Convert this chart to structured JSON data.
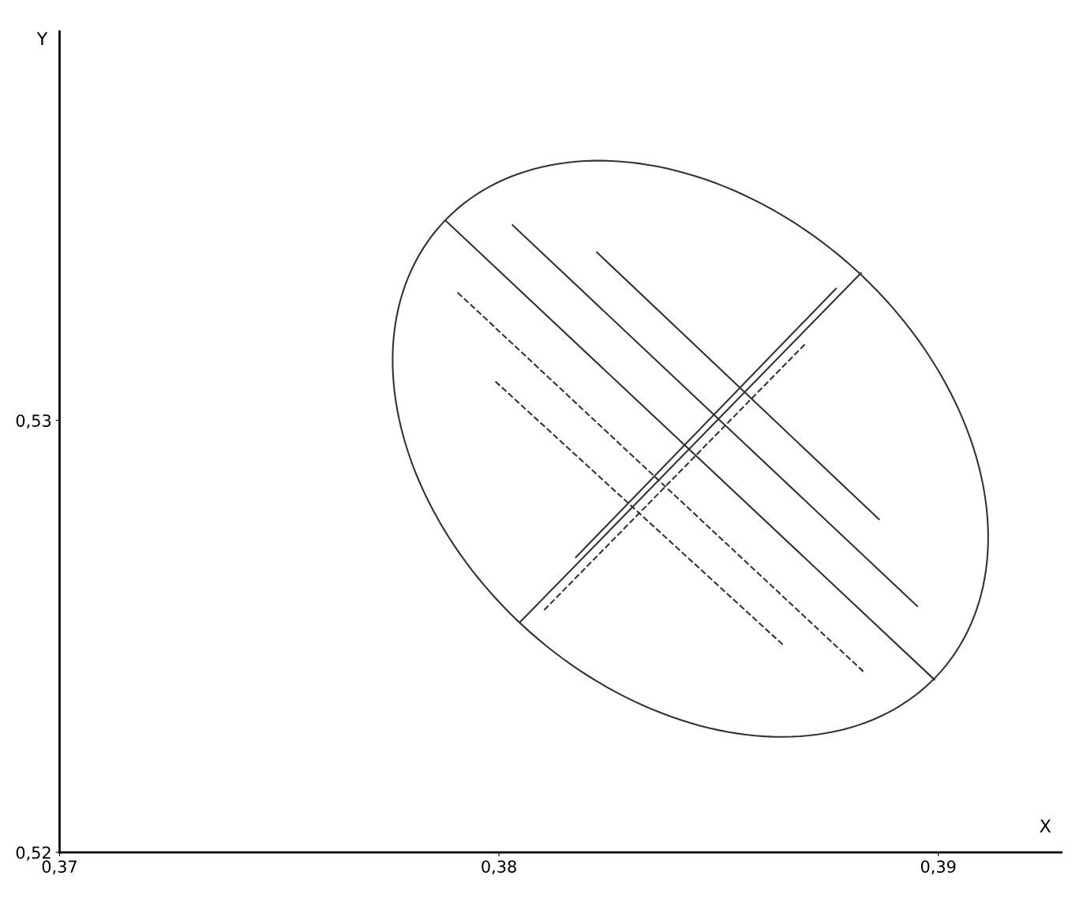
{
  "chart_data": {
    "type": "line",
    "xlabel": "X",
    "ylabel": "Y",
    "xlim": [
      0.37,
      0.3928
    ],
    "ylim": [
      0.52,
      0.539
    ],
    "xticks": [
      {
        "value": 0.37,
        "label": "0,37"
      },
      {
        "value": 0.38,
        "label": "0,38"
      },
      {
        "value": 0.39,
        "label": "0,39"
      }
    ],
    "yticks": [
      {
        "value": 0.52,
        "label": "0,52"
      },
      {
        "value": 0.53,
        "label": "0,53"
      }
    ],
    "grid": false,
    "marker": "none",
    "series": [
      {
        "color": "#333333",
        "line_style": "solid",
        "x": [
          0.37879,
          0.38991
        ],
        "values": [
          0.53462,
          0.524
        ]
      },
      {
        "color": "#333333",
        "line_style": "solid",
        "x": [
          0.38031,
          0.38952
        ],
        "values": [
          0.53452,
          0.5257
        ]
      },
      {
        "color": "#333333",
        "line_style": "solid",
        "x": [
          0.38223,
          0.38865
        ],
        "values": [
          0.53389,
          0.52771
        ]
      },
      {
        "color": "#333333",
        "line_style": "dashed",
        "x": [
          0.37906,
          0.3883
        ],
        "values": [
          0.53296,
          0.52418
        ]
      },
      {
        "color": "#333333",
        "line_style": "dashed",
        "x": [
          0.37992,
          0.38647
        ],
        "values": [
          0.5309,
          0.5248
        ]
      },
      {
        "color": "#333333",
        "line_style": "solid",
        "x": [
          0.38049,
          0.38824
        ],
        "values": [
          0.52534,
          0.53341
        ]
      },
      {
        "color": "#333333",
        "line_style": "solid",
        "x": [
          0.38175,
          0.38767
        ],
        "values": [
          0.52683,
          0.53305
        ]
      },
      {
        "color": "#333333",
        "line_style": "dashed",
        "x": [
          0.38103,
          0.38699
        ],
        "values": [
          0.52561,
          0.53179
        ]
      }
    ]
  }
}
